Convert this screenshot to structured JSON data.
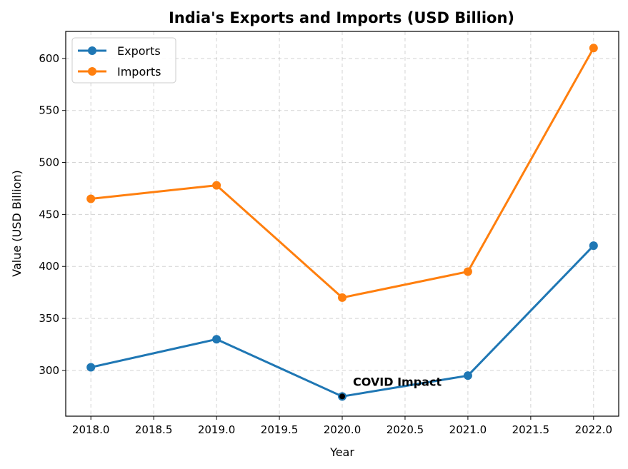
{
  "chart_data": {
    "type": "line",
    "title": "India's Exports and Imports (USD Billion)",
    "xlabel": "Year",
    "ylabel": "Value (USD Billion)",
    "x": [
      2018,
      2019,
      2020,
      2021,
      2022
    ],
    "series": [
      {
        "name": "Exports",
        "values": [
          303,
          330,
          275,
          295,
          420
        ],
        "color": "#1f77b4"
      },
      {
        "name": "Imports",
        "values": [
          465,
          478,
          370,
          395,
          610
        ],
        "color": "#ff7f0e"
      }
    ],
    "xlim": [
      2017.8,
      2022.2
    ],
    "ylim": [
      256,
      626
    ],
    "xticks": [
      "2018.0",
      "2018.5",
      "2019.0",
      "2019.5",
      "2020.0",
      "2020.5",
      "2021.0",
      "2021.5",
      "2022.0"
    ],
    "yticks": [
      "300",
      "350",
      "400",
      "450",
      "500",
      "550",
      "600"
    ],
    "grid": true,
    "legend": "top-left",
    "annotation": {
      "text": "COVID Impact",
      "x": 2020,
      "y": 275,
      "marker_color": "#000000"
    }
  }
}
